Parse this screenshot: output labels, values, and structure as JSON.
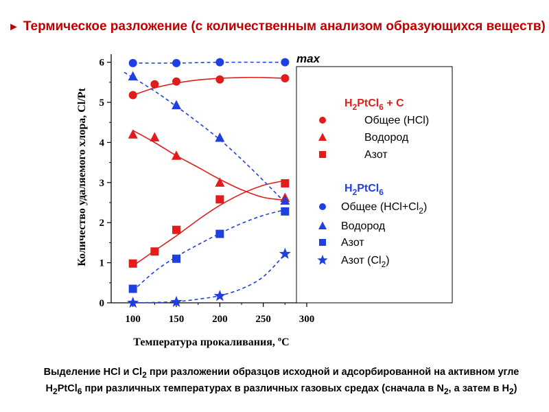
{
  "title": {
    "bullet": "►",
    "text": "Термическое разложение (с количественным анализом образующихся веществ)"
  },
  "caption": {
    "line1_a": "Выделение HCl и Cl",
    "line1_b": "2",
    "line1_c": " при разложении образцов исходной и адсорбированной на активном угле",
    "line2_a": "H",
    "line2_b": "2",
    "line2_c": "PtCl",
    "line2_d": "6",
    "line2_e": "  при различных температурах в различных газовых средах (сначала в N",
    "line2_f": "2",
    "line2_g": ",  а затем в H",
    "line2_h": "2",
    "line2_i": ")"
  },
  "colors": {
    "red": "#e21b1b",
    "blue": "#1f3fe0",
    "text": "#000000",
    "title": "#c00000"
  },
  "chart_data": {
    "type": "scatter",
    "xlabel": "Температура прокаливания, ºC",
    "ylabel": "Количество удаляемого хлора,    Cl/Pt",
    "xlim": [
      75,
      300
    ],
    "ylim": [
      0,
      6.2
    ],
    "xticks": [
      100,
      150,
      200,
      250,
      300
    ],
    "yticks": [
      0,
      1,
      2,
      3,
      4,
      5,
      6
    ],
    "annotation": "max",
    "grid": false,
    "legend_position": "right",
    "legend_groups": [
      {
        "title": "H2PtCl6 + C",
        "title_parts": [
          "H",
          "2",
          "PtCl",
          "6",
          " + C"
        ],
        "color": "red"
      },
      {
        "title": "H2PtCl6",
        "title_parts": [
          "H",
          "2",
          "PtCl",
          "6",
          ""
        ],
        "color": "blue"
      }
    ],
    "series": [
      {
        "name": "Общее (HCl)",
        "group": 0,
        "color": "red",
        "marker": "circle",
        "line": "solid",
        "x": [
          100,
          125,
          150,
          200,
          275
        ],
        "y": [
          5.18,
          5.45,
          5.52,
          5.57,
          5.6
        ],
        "fit_x": [
          100,
          125,
          150,
          175,
          200,
          225,
          250,
          275
        ],
        "fit_y": [
          5.18,
          5.36,
          5.48,
          5.56,
          5.6,
          5.62,
          5.62,
          5.6
        ]
      },
      {
        "name": "Водород",
        "group": 0,
        "color": "red",
        "marker": "triangle",
        "line": "solid",
        "x": [
          100,
          125,
          150,
          200,
          275
        ],
        "y": [
          4.2,
          4.13,
          3.67,
          3.0,
          2.62
        ],
        "fit_x": [
          100,
          125,
          150,
          175,
          200,
          225,
          250,
          275
        ],
        "fit_y": [
          4.3,
          4.0,
          3.67,
          3.38,
          3.08,
          2.82,
          2.63,
          2.56
        ]
      },
      {
        "name": "Азот",
        "group": 0,
        "color": "red",
        "marker": "square",
        "line": "solid",
        "x": [
          100,
          125,
          150,
          200,
          275
        ],
        "y": [
          0.98,
          1.28,
          1.82,
          2.58,
          2.98
        ],
        "fit_x": [
          100,
          125,
          150,
          175,
          200,
          225,
          250,
          275
        ],
        "fit_y": [
          0.92,
          1.3,
          1.67,
          2.07,
          2.43,
          2.72,
          2.93,
          3.05
        ]
      },
      {
        "name": "Общее (HCl+Cl2)",
        "name_parts": [
          "Общее (HCl+Cl",
          "2",
          ")"
        ],
        "group": 1,
        "color": "blue",
        "marker": "circle",
        "line": "dashed",
        "x": [
          100,
          150,
          200,
          275
        ],
        "y": [
          5.98,
          5.98,
          6.0,
          6.0
        ],
        "fit_x": [
          100,
          150,
          200,
          275
        ],
        "fit_y": [
          5.98,
          5.98,
          6.0,
          6.0
        ]
      },
      {
        "name": "Водород",
        "group": 1,
        "color": "blue",
        "marker": "triangle",
        "line": "dashed",
        "x": [
          100,
          150,
          200,
          275
        ],
        "y": [
          5.65,
          4.93,
          4.12,
          2.55
        ],
        "fit_x": [
          90,
          125,
          150,
          175,
          200,
          225,
          250,
          275
        ],
        "fit_y": [
          5.75,
          5.28,
          4.9,
          4.5,
          4.07,
          3.58,
          3.05,
          2.5
        ]
      },
      {
        "name": "Азот",
        "group": 1,
        "color": "blue",
        "marker": "square",
        "line": "dashed",
        "x": [
          100,
          150,
          200,
          275
        ],
        "y": [
          0.35,
          1.1,
          1.72,
          2.28
        ],
        "fit_x": [
          100,
          125,
          150,
          175,
          200,
          225,
          250,
          275
        ],
        "fit_y": [
          0.3,
          0.78,
          1.15,
          1.45,
          1.73,
          1.98,
          2.18,
          2.32
        ]
      },
      {
        "name": "Азот (Cl2)",
        "name_parts": [
          "Азот (Cl",
          "2",
          ")"
        ],
        "group": 1,
        "color": "blue",
        "marker": "star",
        "line": "dashed",
        "x": [
          100,
          150,
          200,
          275
        ],
        "y": [
          0.0,
          0.02,
          0.17,
          1.22
        ],
        "fit_x": [
          100,
          125,
          150,
          175,
          200,
          225,
          250,
          275
        ],
        "fit_y": [
          0.0,
          0.01,
          0.03,
          0.09,
          0.18,
          0.35,
          0.65,
          1.22
        ]
      }
    ]
  }
}
